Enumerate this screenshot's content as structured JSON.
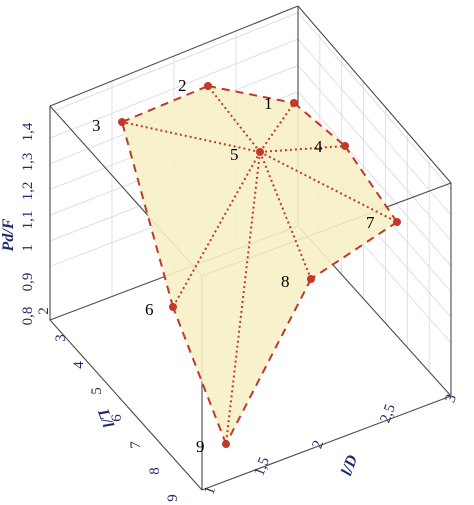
{
  "chart_data": {
    "type": "3d-surface-mesh",
    "axes": {
      "x": {
        "label": "l/D",
        "ticks": [
          "1",
          "1,5",
          "2",
          "2,5",
          "3"
        ]
      },
      "y": {
        "label": "L/l",
        "ticks": [
          "9",
          "8",
          "7",
          "6",
          "5",
          "4",
          "3",
          "2"
        ]
      },
      "z": {
        "label": "Pd/F",
        "ticks": [
          "0,8",
          "0,9",
          "1",
          "1,1",
          "1,2",
          "1,3",
          "1,4"
        ]
      }
    },
    "points": [
      {
        "id": "1",
        "label": "1"
      },
      {
        "id": "2",
        "label": "2"
      },
      {
        "id": "3",
        "label": "3"
      },
      {
        "id": "4",
        "label": "4"
      },
      {
        "id": "5",
        "label": "5"
      },
      {
        "id": "6",
        "label": "6"
      },
      {
        "id": "7",
        "label": "7"
      },
      {
        "id": "8",
        "label": "8"
      },
      {
        "id": "9",
        "label": "9"
      }
    ],
    "boundary": [
      "9",
      "6",
      "3",
      "2",
      "1",
      "4",
      "7",
      "8",
      "9"
    ],
    "interior_edges": [
      [
        "5",
        "3"
      ],
      [
        "5",
        "2"
      ],
      [
        "5",
        "1"
      ],
      [
        "5",
        "4"
      ],
      [
        "5",
        "7"
      ],
      [
        "5",
        "8"
      ],
      [
        "5",
        "9"
      ],
      [
        "5",
        "6"
      ]
    ],
    "colors": {
      "surface": "#f6efc7",
      "mesh_line": "#c0392b",
      "marker": "#c0392b",
      "axis_text": "#1f2a6b"
    },
    "grid": true
  }
}
